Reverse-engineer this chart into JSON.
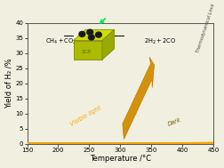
{
  "xlabel": "Temperature /°C",
  "ylabel": "Yield of H₂ /%",
  "xlim": [
    150,
    450
  ],
  "ylim": [
    0,
    40
  ],
  "xticks": [
    150,
    200,
    250,
    300,
    350,
    400,
    450
  ],
  "yticks": [
    0,
    5,
    10,
    15,
    20,
    25,
    30,
    35,
    40
  ],
  "visible_light_color": "#FFA500",
  "dark_color": "#7A5C00",
  "thermo_color": "#444444",
  "arrow_face_color": "#D4920A",
  "arrow_edge_color": "#C07800",
  "visible_label": "Visible light",
  "dark_label": "Dark",
  "thermo_label": "Thermodynamical Limit",
  "bg_color": "#F0EFE0",
  "fig_bg": "#F0EFE0",
  "box_top_color": "#CCDD00",
  "box_front_color": "#AABB00",
  "box_right_color": "#99AA00",
  "box_edge_color": "#888800",
  "particle_color": "#1A1A1A",
  "light_arrow_color": "#00EE55"
}
